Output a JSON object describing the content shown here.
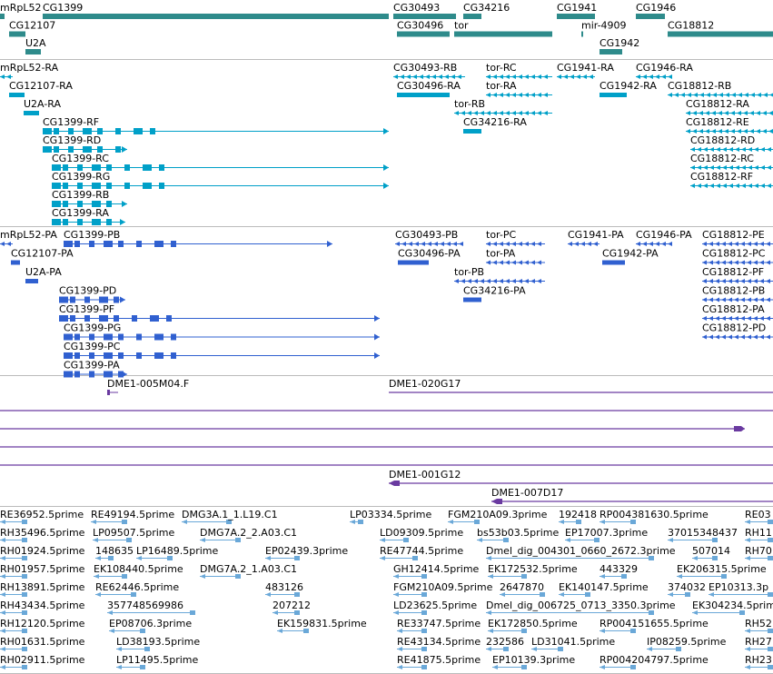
{
  "colors": {
    "gene": "#2e8b8b",
    "transcript": "#00a0c8",
    "protein": "#3060d0",
    "clone": "#6a3aa0",
    "est": "#6aa8d8",
    "separator": "#bbbbbb"
  },
  "tracks": [
    {
      "name": "gene",
      "items": [
        {
          "label": "mRpL52",
          "row": 0,
          "from": 0,
          "to": 5,
          "kind": "box"
        },
        {
          "label": "CG1399",
          "row": 0,
          "from": 47,
          "to": 428,
          "kind": "box"
        },
        {
          "label": "CG12107",
          "row": 1,
          "from": 10,
          "to": 28,
          "kind": "box"
        },
        {
          "label": "U2A",
          "row": 2,
          "from": 28,
          "to": 45,
          "kind": "box"
        },
        {
          "label": "CG30493",
          "row": 0,
          "from": 433,
          "to": 502,
          "kind": "box"
        },
        {
          "label": "CG34216",
          "row": 0,
          "from": 510,
          "to": 530,
          "kind": "box"
        },
        {
          "label": "CG30496",
          "row": 1,
          "from": 437,
          "to": 495,
          "kind": "box"
        },
        {
          "label": "tor",
          "row": 1,
          "from": 500,
          "to": 608,
          "kind": "box"
        },
        {
          "label": "CG1941",
          "row": 0,
          "from": 613,
          "to": 655,
          "kind": "box"
        },
        {
          "label": "CG1946",
          "row": 0,
          "from": 700,
          "to": 732,
          "kind": "box"
        },
        {
          "label": "mir-4909",
          "row": 1,
          "from": 640,
          "to": 642,
          "kind": "box"
        },
        {
          "label": "CG18812",
          "row": 1,
          "from": 735,
          "to": 851,
          "kind": "box"
        },
        {
          "label": "CG1942",
          "row": 2,
          "from": 660,
          "to": 685,
          "kind": "box"
        }
      ]
    },
    {
      "name": "transcript",
      "items": [
        {
          "label": "mRpL52-RA",
          "row": 0,
          "from": 0,
          "to": 14,
          "kind": "arrows"
        },
        {
          "label": "CG12107-RA",
          "row": 1,
          "from": 10,
          "to": 27,
          "kind": "box"
        },
        {
          "label": "U2A-RA",
          "row": 2,
          "from": 26,
          "to": 43,
          "kind": "box"
        },
        {
          "label": "CG1399-RF",
          "row": 3,
          "from": 47,
          "to": 428,
          "kind": "exons"
        },
        {
          "label": "CG1399-RD",
          "row": 4,
          "from": 47,
          "to": 140,
          "kind": "exons"
        },
        {
          "label": "CG1399-RC",
          "row": 5,
          "from": 57,
          "to": 428,
          "kind": "exons"
        },
        {
          "label": "CG1399-RG",
          "row": 6,
          "from": 57,
          "to": 428,
          "kind": "exons"
        },
        {
          "label": "CG1399-RB",
          "row": 7,
          "from": 57,
          "to": 140,
          "kind": "exons"
        },
        {
          "label": "CG1399-RA",
          "row": 8,
          "from": 57,
          "to": 138,
          "kind": "exons"
        },
        {
          "label": "CG30493-RB",
          "row": 0,
          "from": 433,
          "to": 512,
          "kind": "arrows"
        },
        {
          "label": "tor-RC",
          "row": 0,
          "from": 535,
          "to": 608,
          "kind": "arrows"
        },
        {
          "label": "CG1941-RA",
          "row": 0,
          "from": 613,
          "to": 655,
          "kind": "arrows"
        },
        {
          "label": "CG1946-RA",
          "row": 0,
          "from": 700,
          "to": 740,
          "kind": "arrows"
        },
        {
          "label": "CG30496-RA",
          "row": 1,
          "from": 437,
          "to": 495,
          "kind": "box"
        },
        {
          "label": "tor-RA",
          "row": 1,
          "from": 535,
          "to": 608,
          "kind": "arrows"
        },
        {
          "label": "CG1942-RA",
          "row": 1,
          "from": 660,
          "to": 690,
          "kind": "box"
        },
        {
          "label": "CG18812-RB",
          "row": 1,
          "from": 735,
          "to": 851,
          "kind": "arrows"
        },
        {
          "label": "tor-RB",
          "row": 2,
          "from": 500,
          "to": 608,
          "kind": "arrows"
        },
        {
          "label": "CG18812-RA",
          "row": 2,
          "from": 755,
          "to": 851,
          "kind": "arrows"
        },
        {
          "label": "CG34216-RA",
          "row": 3,
          "from": 510,
          "to": 530,
          "kind": "box"
        },
        {
          "label": "CG18812-RE",
          "row": 3,
          "from": 755,
          "to": 851,
          "kind": "arrows"
        },
        {
          "label": "CG18812-RD",
          "row": 4,
          "from": 760,
          "to": 851,
          "kind": "arrows"
        },
        {
          "label": "CG18812-RC",
          "row": 5,
          "from": 760,
          "to": 851,
          "kind": "arrows"
        },
        {
          "label": "CG18812-RF",
          "row": 6,
          "from": 760,
          "to": 851,
          "kind": "arrows"
        }
      ]
    },
    {
      "name": "protein",
      "items": [
        {
          "label": "mRpL52-PA",
          "row": 0,
          "from": 0,
          "to": 14,
          "kind": "arrows"
        },
        {
          "label": "CG1399-PB",
          "row": 0,
          "from": 70,
          "to": 366,
          "kind": "exons"
        },
        {
          "label": "CG12107-PA",
          "row": 1,
          "from": 12,
          "to": 22,
          "kind": "box"
        },
        {
          "label": "U2A-PA",
          "row": 2,
          "from": 28,
          "to": 42,
          "kind": "box"
        },
        {
          "label": "CG1399-PD",
          "row": 3,
          "from": 65,
          "to": 138,
          "kind": "exons"
        },
        {
          "label": "CG1399-PF",
          "row": 4,
          "from": 65,
          "to": 418,
          "kind": "exons"
        },
        {
          "label": "CG1399-PG",
          "row": 5,
          "from": 70,
          "to": 418,
          "kind": "exons"
        },
        {
          "label": "CG1399-PC",
          "row": 6,
          "from": 70,
          "to": 418,
          "kind": "exons"
        },
        {
          "label": "CG1399-PA",
          "row": 7,
          "from": 70,
          "to": 140,
          "kind": "exons"
        },
        {
          "label": "CG30493-PB",
          "row": 0,
          "from": 435,
          "to": 510,
          "kind": "arrows"
        },
        {
          "label": "tor-PC",
          "row": 0,
          "from": 535,
          "to": 600,
          "kind": "arrows"
        },
        {
          "label": "CG1941-PA",
          "row": 0,
          "from": 625,
          "to": 660,
          "kind": "arrows"
        },
        {
          "label": "CG1946-PA",
          "row": 0,
          "from": 700,
          "to": 740,
          "kind": "arrows"
        },
        {
          "label": "CG18812-PE",
          "row": 0,
          "from": 773,
          "to": 851,
          "kind": "arrows"
        },
        {
          "label": "CG30496-PA",
          "row": 1,
          "from": 438,
          "to": 472,
          "kind": "box"
        },
        {
          "label": "tor-PA",
          "row": 1,
          "from": 535,
          "to": 600,
          "kind": "arrows"
        },
        {
          "label": "CG1942-PA",
          "row": 1,
          "from": 663,
          "to": 688,
          "kind": "box"
        },
        {
          "label": "CG18812-PC",
          "row": 1,
          "from": 773,
          "to": 851,
          "kind": "arrows"
        },
        {
          "label": "tor-PB",
          "row": 2,
          "from": 500,
          "to": 600,
          "kind": "arrows"
        },
        {
          "label": "CG18812-PF",
          "row": 2,
          "from": 773,
          "to": 851,
          "kind": "arrows"
        },
        {
          "label": "CG34216-PA",
          "row": 3,
          "from": 510,
          "to": 530,
          "kind": "box"
        },
        {
          "label": "CG18812-PB",
          "row": 3,
          "from": 773,
          "to": 851,
          "kind": "arrows"
        },
        {
          "label": "CG18812-PA",
          "row": 4,
          "from": 773,
          "to": 851,
          "kind": "arrows"
        },
        {
          "label": "CG18812-PD",
          "row": 5,
          "from": 773,
          "to": 851,
          "kind": "arrows"
        }
      ]
    },
    {
      "name": "clone",
      "items": [
        {
          "label": "DME1-005M04.F",
          "row": 0,
          "from": 118,
          "to": 130,
          "kind": "tick"
        },
        {
          "label": "DME1-020G17",
          "row": 0,
          "from": 428,
          "to": 851,
          "kind": "line"
        },
        {
          "label": "",
          "row": 1,
          "from": 0,
          "to": 851,
          "kind": "line"
        },
        {
          "label": "",
          "row": 2,
          "from": 0,
          "to": 820,
          "kind": "line-end"
        },
        {
          "label": "",
          "row": 3,
          "from": 0,
          "to": 851,
          "kind": "line"
        },
        {
          "label": "",
          "row": 4,
          "from": 0,
          "to": 851,
          "kind": "line"
        },
        {
          "label": "DME1-001G12",
          "row": 5,
          "from": 428,
          "to": 851,
          "kind": "line-start"
        },
        {
          "label": "DME1-007D17",
          "row": 6,
          "from": 541,
          "to": 851,
          "kind": "line-start"
        }
      ]
    },
    {
      "name": "est",
      "items": [
        {
          "label": "RE36952.5prime",
          "row": 0,
          "from": 0,
          "to": 30,
          "kind": "pair"
        },
        {
          "label": "RE49194.5prime",
          "row": 0,
          "from": 100,
          "to": 140,
          "kind": "pair"
        },
        {
          "label": "DMG3A.1_1.L19.C1",
          "row": 0,
          "from": 200,
          "to": 255,
          "kind": "pair"
        },
        {
          "label": "LP03334.5prime",
          "row": 0,
          "from": 385,
          "to": 400,
          "kind": "pair"
        },
        {
          "label": "FGM210A09.3prime",
          "row": 0,
          "from": 493,
          "to": 528,
          "kind": "pair"
        },
        {
          "label": "192418",
          "row": 0,
          "from": 615,
          "to": 640,
          "kind": "pair"
        },
        {
          "label": "RP004381630.5prime",
          "row": 0,
          "from": 660,
          "to": 700,
          "kind": "pair"
        },
        {
          "label": "RE03",
          "row": 0,
          "from": 820,
          "to": 851,
          "kind": "pair"
        },
        {
          "label": "RH35496.5prime",
          "row": 1,
          "from": 0,
          "to": 30,
          "kind": "pair"
        },
        {
          "label": "LP09507.5prime",
          "row": 1,
          "from": 102,
          "to": 145,
          "kind": "pair"
        },
        {
          "label": "DMG7A.2_2.A03.C1",
          "row": 1,
          "from": 220,
          "to": 265,
          "kind": "pair"
        },
        {
          "label": "LD09309.5prime",
          "row": 1,
          "from": 418,
          "to": 450,
          "kind": "pair"
        },
        {
          "label": "bs53b03.5prime",
          "row": 1,
          "from": 525,
          "to": 560,
          "kind": "pair"
        },
        {
          "label": "EP17007.3prime",
          "row": 1,
          "from": 622,
          "to": 660,
          "kind": "pair"
        },
        {
          "label": "37015348437",
          "row": 1,
          "from": 735,
          "to": 790,
          "kind": "pair"
        },
        {
          "label": "RH11",
          "row": 1,
          "from": 820,
          "to": 851,
          "kind": "pair"
        },
        {
          "label": "RH01924.5prime",
          "row": 2,
          "from": 0,
          "to": 30,
          "kind": "pair"
        },
        {
          "label": "148635",
          "row": 2,
          "from": 105,
          "to": 125,
          "kind": "pair"
        },
        {
          "label": "LP16489.5prime",
          "row": 2,
          "from": 150,
          "to": 190,
          "kind": "pair"
        },
        {
          "label": "EP02439.3prime",
          "row": 2,
          "from": 292,
          "to": 330,
          "kind": "pair"
        },
        {
          "label": "RE47744.5prime",
          "row": 2,
          "from": 418,
          "to": 460,
          "kind": "pair"
        },
        {
          "label": "Dmel_dig_004301_0660_2672.3prime",
          "row": 2,
          "from": 535,
          "to": 720,
          "kind": "pair"
        },
        {
          "label": "507014",
          "row": 2,
          "from": 762,
          "to": 790,
          "kind": "pair"
        },
        {
          "label": "RH70",
          "row": 2,
          "from": 820,
          "to": 851,
          "kind": "pair"
        },
        {
          "label": "RH01957.5prime",
          "row": 3,
          "from": 0,
          "to": 30,
          "kind": "pair"
        },
        {
          "label": "EK108440.5prime",
          "row": 3,
          "from": 103,
          "to": 140,
          "kind": "pair"
        },
        {
          "label": "DMG7A.2_1.A03.C1",
          "row": 3,
          "from": 220,
          "to": 265,
          "kind": "pair"
        },
        {
          "label": "GH12414.5prime",
          "row": 3,
          "from": 433,
          "to": 470,
          "kind": "pair"
        },
        {
          "label": "EK172532.5prime",
          "row": 3,
          "from": 537,
          "to": 580,
          "kind": "pair"
        },
        {
          "label": "443329",
          "row": 3,
          "from": 660,
          "to": 690,
          "kind": "pair"
        },
        {
          "label": "EK206315.5prime",
          "row": 3,
          "from": 745,
          "to": 800,
          "kind": "pair"
        },
        {
          "label": "483126",
          "row": 4,
          "from": 292,
          "to": 330,
          "kind": "pair"
        },
        {
          "label": "RH13891.5prime",
          "row": 4,
          "from": 0,
          "to": 30,
          "kind": "pair"
        },
        {
          "label": "RE62446.5prime",
          "row": 4,
          "from": 105,
          "to": 150,
          "kind": "pair"
        },
        {
          "label": "FGM210A09.5prime",
          "row": 4,
          "from": 433,
          "to": 470,
          "kind": "pair"
        },
        {
          "label": "2647870",
          "row": 4,
          "from": 550,
          "to": 600,
          "kind": "pair"
        },
        {
          "label": "EK140147.5prime",
          "row": 4,
          "from": 615,
          "to": 650,
          "kind": "pair"
        },
        {
          "label": "374032",
          "row": 4,
          "from": 735,
          "to": 760,
          "kind": "pair"
        },
        {
          "label": "EP10313.3p",
          "row": 4,
          "from": 780,
          "to": 851,
          "kind": "pair"
        },
        {
          "label": "RH43434.5prime",
          "row": 5,
          "from": 0,
          "to": 30,
          "kind": "pair"
        },
        {
          "label": "357748569986",
          "row": 5,
          "from": 118,
          "to": 215,
          "kind": "pair"
        },
        {
          "label": "207212",
          "row": 5,
          "from": 300,
          "to": 330,
          "kind": "pair"
        },
        {
          "label": "LD23625.5prime",
          "row": 5,
          "from": 433,
          "to": 470,
          "kind": "pair"
        },
        {
          "label": "Dmel_dig_006725_0713_3350.3prime",
          "row": 5,
          "from": 535,
          "to": 720,
          "kind": "pair"
        },
        {
          "label": "EK304234.5prime",
          "row": 5,
          "from": 762,
          "to": 820,
          "kind": "pair"
        },
        {
          "label": "RH12120.5prime",
          "row": 6,
          "from": 0,
          "to": 30,
          "kind": "pair"
        },
        {
          "label": "EP08706.3prime",
          "row": 6,
          "from": 120,
          "to": 160,
          "kind": "pair"
        },
        {
          "label": "EK159831.5prime",
          "row": 6,
          "from": 305,
          "to": 340,
          "kind": "pair"
        },
        {
          "label": "RE33747.5prime",
          "row": 6,
          "from": 437,
          "to": 470,
          "kind": "pair"
        },
        {
          "label": "EK172850.5prime",
          "row": 6,
          "from": 537,
          "to": 580,
          "kind": "pair"
        },
        {
          "label": "RP004151655.5prime",
          "row": 6,
          "from": 660,
          "to": 700,
          "kind": "pair"
        },
        {
          "label": "RH52",
          "row": 6,
          "from": 820,
          "to": 851,
          "kind": "pair"
        },
        {
          "label": "RH01631.5prime",
          "row": 7,
          "from": 0,
          "to": 30,
          "kind": "pair"
        },
        {
          "label": "LD38193.5prime",
          "row": 7,
          "from": 128,
          "to": 165,
          "kind": "pair"
        },
        {
          "label": "RE43134.5prime",
          "row": 7,
          "from": 437,
          "to": 470,
          "kind": "pair"
        },
        {
          "label": "232586",
          "row": 7,
          "from": 535,
          "to": 560,
          "kind": "pair"
        },
        {
          "label": "LD31041.5prime",
          "row": 7,
          "from": 585,
          "to": 620,
          "kind": "pair"
        },
        {
          "label": "IP08259.5prime",
          "row": 7,
          "from": 712,
          "to": 750,
          "kind": "pair"
        },
        {
          "label": "RH27",
          "row": 7,
          "from": 820,
          "to": 851,
          "kind": "pair"
        },
        {
          "label": "RH02911.5prime",
          "row": 8,
          "from": 0,
          "to": 30,
          "kind": "pair"
        },
        {
          "label": "LP11495.5prime",
          "row": 8,
          "from": 128,
          "to": 160,
          "kind": "pair"
        },
        {
          "label": "RE41875.5prime",
          "row": 8,
          "from": 437,
          "to": 470,
          "kind": "pair"
        },
        {
          "label": "EP10139.3prime",
          "row": 8,
          "from": 542,
          "to": 580,
          "kind": "pair"
        },
        {
          "label": "RP004204797.5prime",
          "row": 8,
          "from": 660,
          "to": 700,
          "kind": "pair"
        },
        {
          "label": "RH23",
          "row": 8,
          "from": 820,
          "to": 851,
          "kind": "pair"
        }
      ]
    }
  ]
}
